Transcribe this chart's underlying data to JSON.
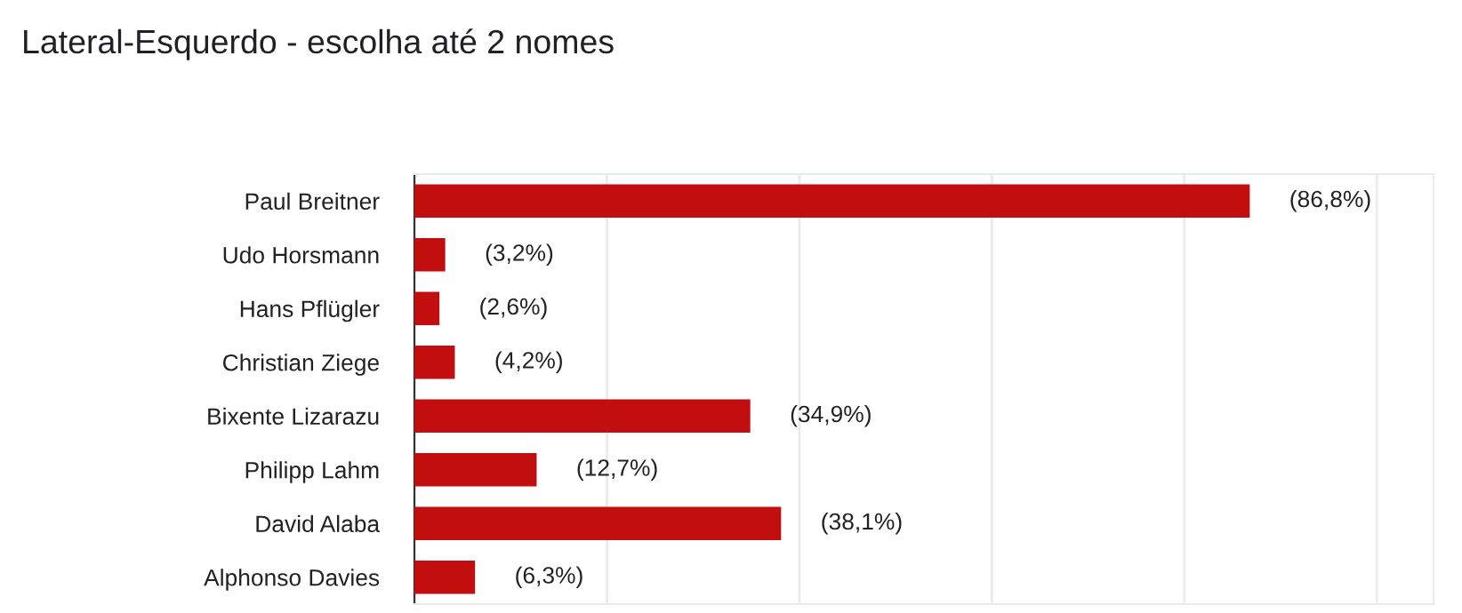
{
  "chart_data": {
    "type": "bar",
    "orientation": "horizontal",
    "title": "Lateral-Esquerdo - escolha até 2 nomes",
    "categories": [
      "Paul Breitner",
      "Udo Horsmann",
      "Hans Pflügler",
      "Christian Ziege",
      "Bixente Lizarazu",
      "Philipp Lahm",
      "David Alaba",
      "Alphonso Davies"
    ],
    "values": [
      86.8,
      3.2,
      2.6,
      4.2,
      34.9,
      12.7,
      38.1,
      6.3
    ],
    "value_labels": [
      "(86,8%)",
      "(3,2%)",
      "(2,6%)",
      "(4,2%)",
      "(34,9%)",
      "(12,7%)",
      "(38,1%)",
      "(6,3%)"
    ],
    "color": "#c20e0e",
    "grid": "x"
  }
}
